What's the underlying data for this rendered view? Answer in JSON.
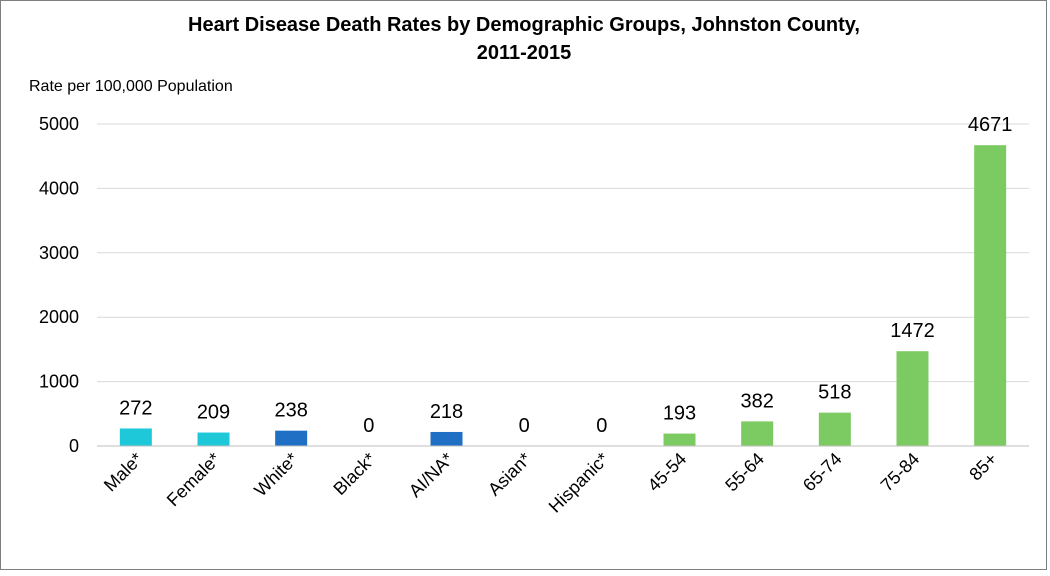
{
  "chart_data": {
    "type": "bar",
    "title_line1": "Heart Disease Death Rates by Demographic Groups, Johnston County,",
    "title_line2": "2011-2015",
    "ylabel": "Rate per 100,000 Population",
    "xlabel": "",
    "ylim": [
      0,
      5000
    ],
    "yticks": [
      0,
      1000,
      2000,
      3000,
      4000,
      5000
    ],
    "grid": true,
    "legend": "none",
    "categories": [
      "Male*",
      "Female*",
      "White*",
      "Black*",
      "AI/NA*",
      "Asian*",
      "Hispanic*",
      "45-54",
      "55-64",
      "65-74",
      "75-84",
      "85+"
    ],
    "values": [
      272,
      209,
      238,
      0,
      218,
      0,
      0,
      193,
      382,
      518,
      1472,
      4671
    ],
    "colors": [
      "#1ec8d8",
      "#1ec8d8",
      "#1f6fc5",
      "#1f6fc5",
      "#1f6fc5",
      "#1f6fc5",
      "#1f6fc5",
      "#7ccb62",
      "#7ccb62",
      "#7ccb62",
      "#7ccb62",
      "#7ccb62"
    ]
  }
}
